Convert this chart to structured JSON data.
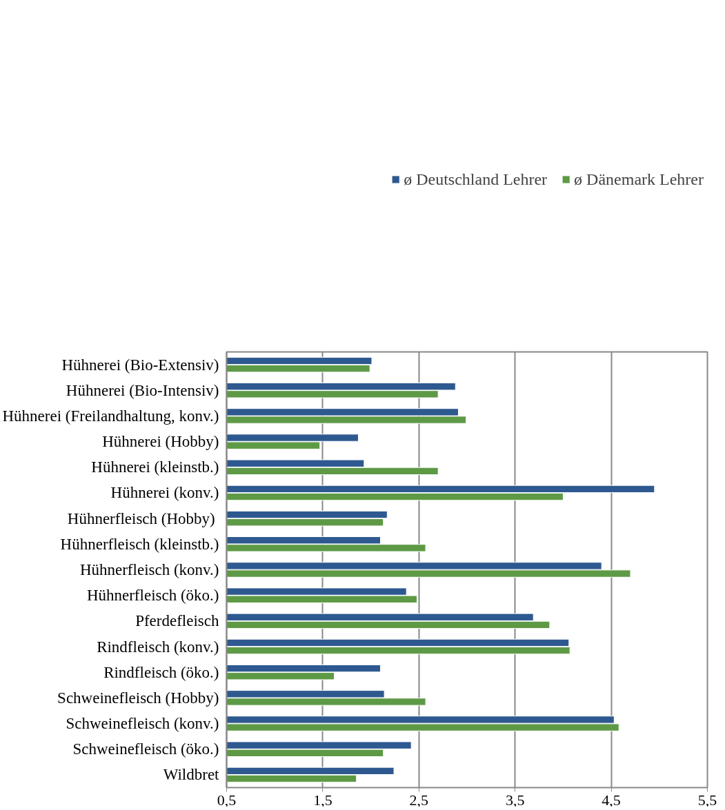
{
  "chart_data": {
    "type": "bar",
    "orientation": "horizontal",
    "categories": [
      "Hühnerei (Bio-Extensiv)",
      "Hühnerei (Bio-Intensiv)",
      "Hühnerei (Freilandhaltung, konv.)",
      "Hühnerei (Hobby)",
      "Hühnerei (kleinstb.)",
      "Hühnerei (konv.)",
      "Hühnerfleisch  (Hobby)",
      "Hühnerfleisch (kleinstb.)",
      "Hühnerfleisch (konv.)",
      "Hühnerfleisch (öko.)",
      "Pferdefleisch",
      "Rindfleisch (konv.)",
      "Rindfleisch (öko.)",
      "Schweinefleisch (Hobby)",
      "Schweinefleisch (konv.)",
      "Schweinefleisch (öko.)",
      "Wildbret"
    ],
    "series": [
      {
        "name": "ø Deutschland Lehrer",
        "color": "#2e5990",
        "values": [
          2.01,
          2.88,
          2.91,
          1.87,
          1.93,
          4.95,
          2.17,
          2.1,
          4.4,
          2.37,
          3.69,
          4.06,
          2.1,
          2.14,
          4.53,
          2.42,
          2.24
        ]
      },
      {
        "name": "ø Dänemark Lehrer",
        "color": "#5e9a46",
        "values": [
          1.99,
          2.7,
          2.99,
          1.47,
          2.7,
          4.0,
          2.13,
          2.57,
          4.7,
          2.48,
          3.86,
          4.07,
          1.62,
          2.57,
          4.58,
          2.13,
          1.85
        ]
      }
    ],
    "xlim": [
      0.5,
      5.5
    ],
    "xticks": [
      {
        "value": 0.5,
        "label": "0,5"
      },
      {
        "value": 1.5,
        "label": "1,5"
      },
      {
        "value": 2.5,
        "label": "2,5"
      },
      {
        "value": 3.5,
        "label": "3,5"
      },
      {
        "value": 4.5,
        "label": "4,5"
      },
      {
        "value": 5.5,
        "label": "5,5"
      }
    ],
    "grid": "x",
    "legend": "top"
  }
}
